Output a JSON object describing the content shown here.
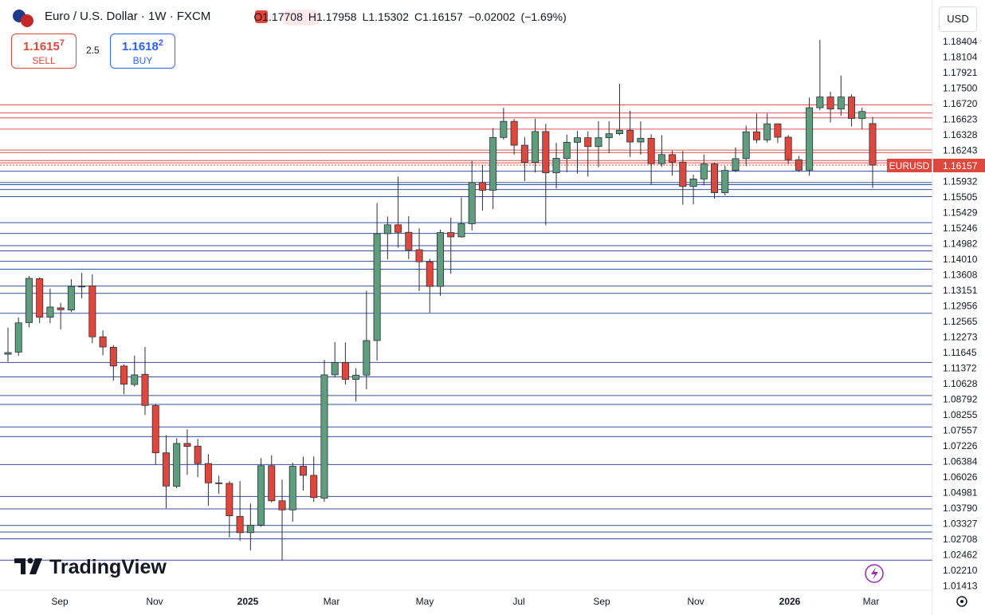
{
  "chart_data": {
    "type": "candlestick",
    "title": "Euro / U.S. Dollar · 1W · FXCM",
    "currency": "USD",
    "ticker": "EURUSD",
    "ohlc_prefixes": [
      "O",
      "H",
      "L",
      "C"
    ],
    "change": {
      "value": -0.02002,
      "label": "−0.02002"
    },
    "change_percent": {
      "value": -1.69,
      "label": "(−1.69%)"
    },
    "sell": {
      "label": "SELL",
      "price": "1.1615",
      "pip": "7"
    },
    "buy": {
      "label": "BUY",
      "price": "1.1618",
      "pip": "2"
    },
    "spread": 2.5,
    "up_color": "#5e9e7e",
    "down_color": "#e0473c",
    "level_color_above": "#e05656",
    "level_color_below": "#34529c",
    "x_labels": [
      "Sep",
      "Nov",
      "2025",
      "Mar",
      "May",
      "Jul",
      "Sep",
      "Nov",
      "2026",
      "Mar"
    ],
    "ylim": [
      1.0029,
      1.2232
    ],
    "yticks": [
      1.18404,
      1.18104,
      1.17921,
      {
        "value": 1.175,
        "label": "1.17500"
      },
      {
        "value": 1.1672,
        "label": "1.16720"
      },
      1.16623,
      1.16328,
      1.16243,
      1.15932,
      1.15505,
      1.15429,
      1.15246,
      1.14982,
      {
        "value": 1.1401,
        "label": "1.14010"
      },
      1.13608,
      1.13151,
      1.12956,
      1.12565,
      1.12273,
      1.11645,
      1.11372,
      1.10628,
      1.08792,
      1.08255,
      1.07557,
      1.07226,
      1.06384,
      1.06026,
      1.04981,
      {
        "value": 1.0379,
        "label": "1.03790"
      },
      1.03327,
      1.02708,
      1.02462,
      {
        "value": 1.0221,
        "label": "1.02210"
      },
      1.01413
    ],
    "open": [
      1.091,
      1.0918,
      1.1028,
      1.1192,
      1.1048,
      1.1083,
      1.1075,
      1.1162,
      1.1165,
      1.0975,
      1.0936,
      1.0866,
      1.0797,
      1.0835,
      1.0718,
      1.0542,
      1.0417,
      1.0577,
      1.0567,
      1.0502,
      1.043,
      1.0428,
      1.0305,
      1.0244,
      1.0272,
      1.0494,
      1.0363,
      1.0329,
      1.0492,
      1.0458,
      1.0373,
      1.0833,
      1.0879,
      1.0816,
      1.0832,
      1.0961,
      1.136,
      1.1393,
      1.1365,
      1.13,
      1.1255,
      1.1163,
      1.1364,
      1.1348,
      1.1397,
      1.1551,
      1.1522,
      1.1719,
      1.1779,
      1.169,
      1.1626,
      1.1741,
      1.1587,
      1.1641,
      1.1701,
      1.1718,
      1.1685,
      1.1718,
      1.1733,
      1.1746,
      1.1702,
      1.1716,
      1.1621,
      1.1655,
      1.1627,
      1.1536,
      1.1564,
      1.162,
      1.1513,
      1.1596,
      1.164,
      1.174,
      1.171,
      1.177,
      1.172,
      1.1636,
      1.1597,
      1.183,
      1.187,
      1.1825,
      1.187,
      1.179,
      1.17708
    ],
    "high": [
      1.1009,
      1.1047,
      1.1202,
      1.1196,
      1.1155,
      1.1102,
      1.119,
      1.1214,
      1.1209,
      1.0999,
      1.0944,
      1.0871,
      1.0905,
      1.0937,
      1.0725,
      1.0608,
      1.0597,
      1.063,
      1.0594,
      1.0537,
      1.0457,
      1.0437,
      1.0437,
      1.0353,
      1.0522,
      1.0533,
      1.0442,
      1.0505,
      1.0528,
      1.0528,
      1.0889,
      1.0955,
      1.0954,
      1.0858,
      1.1147,
      1.1474,
      1.1424,
      1.1573,
      1.1425,
      1.138,
      1.1266,
      1.1375,
      1.142,
      1.1495,
      1.1631,
      1.1615,
      1.1754,
      1.183,
      1.1788,
      1.1721,
      1.1789,
      1.177,
      1.1699,
      1.173,
      1.1743,
      1.1742,
      1.178,
      1.178,
      1.1919,
      1.1819,
      1.1779,
      1.1731,
      1.1728,
      1.167,
      1.1669,
      1.158,
      1.1655,
      1.1625,
      1.1613,
      1.1682,
      1.1763,
      1.1808,
      1.1808,
      1.177,
      1.1728,
      1.165,
      1.1868,
      1.2083,
      1.189,
      1.195,
      1.188,
      1.183,
      1.17958
    ],
    "low": [
      1.0882,
      1.0904,
      1.101,
      1.1026,
      1.1026,
      1.1002,
      1.1067,
      1.1119,
      1.0951,
      1.0906,
      1.0811,
      1.0761,
      1.0789,
      1.0683,
      1.0497,
      1.0335,
      1.041,
      1.046,
      1.0451,
      1.0344,
      1.0389,
      1.0226,
      1.0213,
      1.0178,
      1.0266,
      1.0357,
      1.0141,
      1.0285,
      1.0401,
      1.0359,
      1.036,
      1.0823,
      1.0797,
      1.0733,
      1.0779,
      1.0886,
      1.1264,
      1.1308,
      1.1265,
      1.1146,
      1.1065,
      1.1128,
      1.121,
      1.1345,
      1.1372,
      1.1446,
      1.1452,
      1.1711,
      1.1655,
      1.1556,
      1.1588,
      1.1391,
      1.1528,
      1.1589,
      1.1584,
      1.1573,
      1.1608,
      1.166,
      1.1727,
      1.1646,
      1.1655,
      1.1542,
      1.161,
      1.1576,
      1.1468,
      1.1469,
      1.154,
      1.1491,
      1.1502,
      1.159,
      1.1612,
      1.1698,
      1.17,
      1.1698,
      1.162,
      1.159,
      1.1576,
      1.182,
      1.1775,
      1.18,
      1.176,
      1.175,
      1.15302
    ],
    "close": [
      1.0916,
      1.1027,
      1.1193,
      1.1048,
      1.1086,
      1.1076,
      1.1163,
      1.1164,
      1.0975,
      1.0937,
      1.0866,
      1.0798,
      1.0833,
      1.0719,
      1.0542,
      1.0418,
      1.0577,
      1.0566,
      1.0502,
      1.043,
      1.0428,
      1.0307,
      1.0244,
      1.0272,
      1.0494,
      1.0363,
      1.0329,
      1.0492,
      1.0458,
      1.0375,
      1.0833,
      1.0879,
      1.0816,
      1.0832,
      1.0961,
      1.136,
      1.1393,
      1.1365,
      1.1299,
      1.1255,
      1.1163,
      1.1364,
      1.1348,
      1.1397,
      1.1551,
      1.1522,
      1.1719,
      1.1779,
      1.169,
      1.1626,
      1.1741,
      1.1587,
      1.1641,
      1.1701,
      1.1718,
      1.1685,
      1.1718,
      1.1733,
      1.1746,
      1.1702,
      1.1716,
      1.1621,
      1.1655,
      1.1627,
      1.1536,
      1.1564,
      1.162,
      1.1513,
      1.1596,
      1.164,
      1.174,
      1.171,
      1.177,
      1.172,
      1.1636,
      1.1597,
      1.183,
      1.187,
      1.1825,
      1.187,
      1.179,
      1.18159,
      1.16157
    ]
  }
}
